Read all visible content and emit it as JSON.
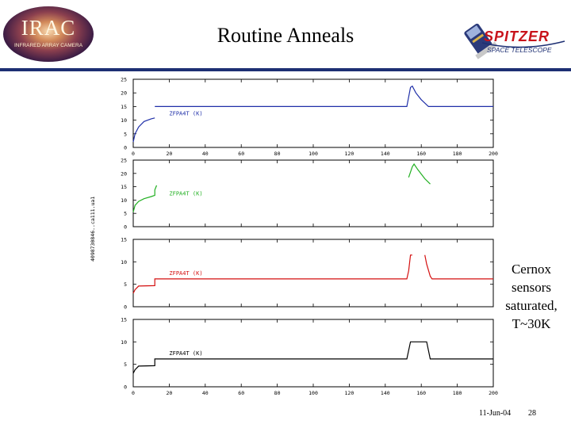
{
  "slide": {
    "title": "Routine Anneals",
    "side_note_lines": [
      "Cernox",
      "sensors",
      "saturated,",
      "T~30K"
    ],
    "footer_date": "11-Jun-04",
    "footer_page": "28",
    "irac_logo_text": "IRAC",
    "irac_logo_subtext": "INFRARED ARRAY CAMERA",
    "spitzer_logo_text": "SPITZER",
    "spitzer_logo_subtext": "SPACE TELESCOPE",
    "y_identifier": "4098730846..ca111.ua1"
  },
  "colors": {
    "header_rule": "#1d2f73",
    "series_blue": "#1f2fa8",
    "series_green": "#22b022",
    "series_red": "#d40f0f",
    "series_black": "#000000",
    "spitzer_red": "#c8131b"
  },
  "chart_data": [
    {
      "type": "line",
      "legend": "ZFPA4T (K)",
      "color": "#1f2fa8",
      "xlim": [
        0,
        200
      ],
      "ylim": [
        0,
        25
      ],
      "x_ticks": [
        0,
        20,
        40,
        60,
        80,
        100,
        120,
        140,
        160,
        180,
        200
      ],
      "x_tick_labels": [
        "0",
        "20",
        "40",
        "60",
        "80",
        "100",
        "120",
        "140",
        "160",
        "180",
        "200"
      ],
      "y_ticks": [
        0,
        5,
        10,
        15,
        20,
        25
      ],
      "y_tick_labels": [
        "0",
        "5",
        "10",
        "15",
        "20",
        "25"
      ],
      "segments": [
        [
          [
            0,
            2
          ],
          [
            1,
            5
          ],
          [
            3,
            7.5
          ],
          [
            6,
            9.5
          ],
          [
            10,
            10.5
          ],
          [
            12,
            10.8
          ]
        ],
        [
          [
            12,
            15
          ],
          [
            152,
            15
          ],
          [
            154,
            22
          ],
          [
            155,
            22.5
          ],
          [
            157,
            20
          ],
          [
            160,
            17.5
          ],
          [
            164,
            15
          ],
          [
            200,
            15
          ]
        ]
      ]
    },
    {
      "type": "line",
      "legend": "ZFPA4T (K)",
      "color": "#22b022",
      "xlim": [
        0,
        200
      ],
      "ylim": [
        0,
        25
      ],
      "x_ticks": [
        0,
        20,
        40,
        60,
        80,
        100,
        120,
        140,
        160,
        180,
        200
      ],
      "x_tick_labels": [],
      "y_ticks": [
        0,
        5,
        10,
        15,
        20,
        25
      ],
      "y_tick_labels": [
        "0",
        "5",
        "10",
        "15",
        "20",
        "25"
      ],
      "segments": [
        [
          [
            0,
            5.5
          ],
          [
            1,
            8
          ],
          [
            3,
            9.5
          ],
          [
            6,
            10.5
          ],
          [
            10,
            11.3
          ],
          [
            12,
            11.8
          ],
          [
            12,
            13.8
          ],
          [
            13,
            15.5
          ]
        ],
        [
          [
            153,
            18.5
          ],
          [
            155,
            22.5
          ],
          [
            156,
            23.5
          ],
          [
            158,
            21.5
          ],
          [
            162,
            18
          ],
          [
            165,
            16
          ]
        ]
      ]
    },
    {
      "type": "line",
      "legend": "ZFPA4T (K)",
      "color": "#d40f0f",
      "xlim": [
        0,
        200
      ],
      "ylim": [
        0,
        15
      ],
      "x_ticks": [
        0,
        20,
        40,
        60,
        80,
        100,
        120,
        140,
        160,
        180,
        200
      ],
      "x_tick_labels": [],
      "y_ticks": [
        0,
        5,
        10,
        15
      ],
      "y_tick_labels": [
        "0",
        "5",
        "10",
        "15"
      ],
      "segments": [
        [
          [
            0,
            3
          ],
          [
            1,
            3.8
          ],
          [
            3,
            4.6
          ],
          [
            12,
            4.7
          ],
          [
            12,
            6.2
          ],
          [
            152,
            6.2
          ],
          [
            153,
            8
          ],
          [
            154,
            11.5
          ],
          [
            155,
            11.5
          ]
        ],
        [
          [
            162,
            11.5
          ],
          [
            163,
            9.5
          ],
          [
            165,
            6.8
          ],
          [
            166,
            6.2
          ],
          [
            200,
            6.2
          ]
        ]
      ]
    },
    {
      "type": "line",
      "legend": "ZFPA4T (K)",
      "color": "#000000",
      "xlim": [
        0,
        200
      ],
      "ylim": [
        0,
        15
      ],
      "x_ticks": [
        0,
        20,
        40,
        60,
        80,
        100,
        120,
        140,
        160,
        180,
        200
      ],
      "x_tick_labels": [
        "0",
        "20",
        "40",
        "60",
        "80",
        "100",
        "120",
        "140",
        "160",
        "180",
        "200"
      ],
      "y_ticks": [
        0,
        5,
        10,
        15
      ],
      "y_tick_labels": [
        "0",
        "5",
        "10",
        "15"
      ],
      "segments": [
        [
          [
            0,
            3
          ],
          [
            1,
            3.8
          ],
          [
            3,
            4.6
          ],
          [
            12,
            4.7
          ],
          [
            12,
            6.2
          ],
          [
            152,
            6.2
          ],
          [
            154,
            10
          ],
          [
            163,
            10
          ],
          [
            165,
            6.2
          ],
          [
            200,
            6.2
          ]
        ]
      ]
    }
  ]
}
